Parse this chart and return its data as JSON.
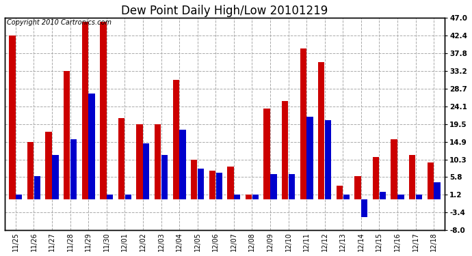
{
  "title": "Dew Point Daily High/Low 20101219",
  "copyright": "Copyright 2010 Cartronics.com",
  "dates": [
    "11/25",
    "11/26",
    "11/27",
    "11/28",
    "11/29",
    "11/30",
    "12/01",
    "12/02",
    "12/03",
    "12/04",
    "12/05",
    "12/06",
    "12/07",
    "12/08",
    "12/09",
    "12/10",
    "12/11",
    "12/12",
    "12/13",
    "12/14",
    "12/15",
    "12/16",
    "12/17",
    "12/18"
  ],
  "high": [
    42.4,
    14.9,
    17.5,
    33.2,
    46.0,
    46.0,
    21.0,
    19.5,
    19.5,
    31.0,
    10.3,
    7.5,
    8.5,
    1.2,
    23.5,
    25.5,
    39.2,
    35.5,
    3.5,
    6.0,
    11.0,
    15.5,
    11.5,
    9.5
  ],
  "low": [
    1.2,
    6.0,
    11.5,
    15.5,
    27.5,
    1.2,
    1.2,
    14.5,
    11.5,
    18.0,
    8.0,
    7.0,
    1.2,
    1.2,
    6.5,
    6.5,
    21.5,
    20.5,
    1.2,
    -4.5,
    2.0,
    1.2,
    1.2,
    4.5
  ],
  "high_color": "#cc0000",
  "low_color": "#0000cc",
  "background_color": "#ffffff",
  "grid_color": "#aaaaaa",
  "ylim": [
    -8.0,
    47.0
  ],
  "yticks": [
    -8.0,
    -3.4,
    1.2,
    5.8,
    10.3,
    14.9,
    19.5,
    24.1,
    28.7,
    33.2,
    37.8,
    42.4,
    47.0
  ],
  "title_fontsize": 12,
  "copyright_fontsize": 7,
  "bar_width": 0.35,
  "figsize": [
    6.9,
    3.75
  ],
  "dpi": 100
}
